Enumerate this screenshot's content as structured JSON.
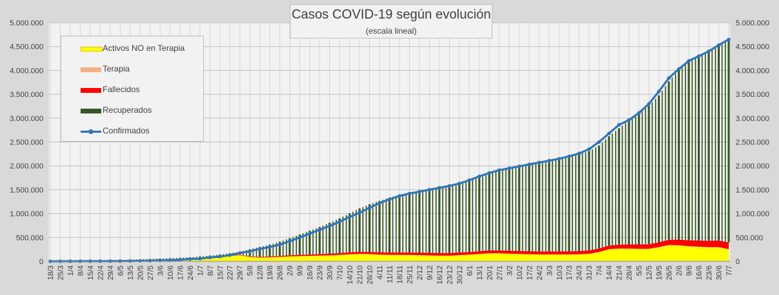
{
  "chart_data": {
    "type": "area",
    "title": "Casos COVID-19 según evolución",
    "subtitle": "(escala lineal)",
    "ylim": [
      0,
      5000000
    ],
    "ytick_labels": [
      "0",
      "500.000",
      "1.000.000",
      "1.500.000",
      "2.000.000",
      "2.500.000",
      "3.000.000",
      "3.500.000",
      "4.000.000",
      "4.500.000",
      "5.000.000"
    ],
    "y2tick_labels": [
      "0",
      "500.000",
      "1.000.000",
      "1.500.000",
      "2.000.000",
      "2.500.000",
      "3.000.000",
      "3.500.000",
      "4.000.000",
      "4.500.000",
      "5.000.000"
    ],
    "x_tick_labels": [
      "18/3",
      "25/3",
      "1/4",
      "8/4",
      "15/4",
      "22/4",
      "29/4",
      "6/5",
      "13/5",
      "20/5",
      "27/5",
      "3/6",
      "10/6",
      "17/6",
      "24/6",
      "1/7",
      "8/7",
      "15/7",
      "22/7",
      "29/7",
      "5/8",
      "12/8",
      "19/8",
      "26/8",
      "2/9",
      "9/9",
      "16/9",
      "23/9",
      "30/9",
      "7/10",
      "14/10",
      "21/10",
      "28/10",
      "4/11",
      "11/11",
      "18/11",
      "25/11",
      "2/12",
      "9/12",
      "16/12",
      "23/12",
      "30/12",
      "6/1",
      "13/1",
      "20/1",
      "27/1",
      "3/2",
      "10/2",
      "17/2",
      "24/2",
      "3/3",
      "10/3",
      "17/3",
      "24/3",
      "31/3",
      "7/4",
      "14/4",
      "21/4",
      "28/4",
      "5/5",
      "12/5",
      "19/5",
      "26/5",
      "2/6",
      "9/6",
      "16/6",
      "23/6",
      "30/6",
      "7/7"
    ],
    "legend_position": "top-left",
    "grid": true,
    "series": [
      {
        "name": "Activos NO en Terapia",
        "color": "#ffff00",
        "values": [
          50,
          4000,
          10000,
          15000,
          14000,
          13000,
          15000,
          17000,
          20000,
          25000,
          30000,
          35000,
          37000,
          40000,
          45000,
          55000,
          75000,
          90000,
          110000,
          125000,
          90000,
          75000,
          80000,
          90000,
          100000,
          105000,
          110000,
          115000,
          120000,
          130000,
          140000,
          150000,
          145000,
          135000,
          130000,
          130000,
          130000,
          125000,
          120000,
          115000,
          115000,
          125000,
          135000,
          150000,
          165000,
          165000,
          155000,
          150000,
          145000,
          140000,
          140000,
          140000,
          140000,
          145000,
          155000,
          190000,
          250000,
          260000,
          260000,
          255000,
          255000,
          290000,
          335000,
          330000,
          310000,
          300000,
          290000,
          290000,
          250000
        ]
      },
      {
        "name": "Terapia",
        "color": "#f4b183",
        "values": [
          10,
          100,
          200,
          300,
          350,
          350,
          400,
          400,
          450,
          500,
          550,
          600,
          700,
          900,
          1100,
          1400,
          1600,
          2000,
          2400,
          2800,
          3000,
          3300,
          3700,
          4200,
          4700,
          5000,
          5500,
          6000,
          6500,
          7000,
          7500,
          7500,
          7200,
          6800,
          6500,
          6000,
          5500,
          5000,
          4500,
          4200,
          4000,
          4000,
          4500,
          4800,
          5000,
          5000,
          4800,
          4500,
          4200,
          4000,
          3800,
          3600,
          3600,
          3800,
          4200,
          5000,
          6500,
          7500,
          8000,
          8000,
          8000,
          8000,
          8000,
          8000,
          7500,
          7000,
          6800,
          6500,
          6000
        ]
      },
      {
        "name": "Fallecidos",
        "color": "#ff0000",
        "values": [
          2,
          200,
          500,
          800,
          1000,
          1200,
          1400,
          1600,
          1800,
          2000,
          2300,
          2600,
          3000,
          3400,
          3800,
          4200,
          5000,
          6000,
          7500,
          9000,
          11000,
          13000,
          15500,
          18000,
          20500,
          23000,
          26000,
          29000,
          32000,
          35000,
          38000,
          41000,
          43000,
          45000,
          47000,
          48000,
          49000,
          50000,
          51000,
          52000,
          53000,
          54000,
          55000,
          56000,
          57000,
          58000,
          59000,
          60000,
          61000,
          62000,
          63000,
          64000,
          65000,
          66000,
          68000,
          71000,
          75000,
          80000,
          85000,
          90000,
          95000,
          100000,
          107000,
          115000,
          122000,
          128000,
          133000,
          137000,
          140000
        ]
      },
      {
        "name": "Recuperados",
        "color": "#375623",
        "values": [
          0,
          100,
          1000,
          2500,
          4000,
          5500,
          7000,
          9000,
          11000,
          14000,
          17000,
          21000,
          25000,
          30000,
          35000,
          42000,
          40000,
          45000,
          50000,
          60000,
          150000,
          210000,
          250000,
          300000,
          360000,
          430000,
          500000,
          570000,
          650000,
          730000,
          820000,
          910000,
          1000000,
          1080000,
          1150000,
          1210000,
          1260000,
          1300000,
          1340000,
          1380000,
          1420000,
          1450000,
          1490000,
          1540000,
          1600000,
          1670000,
          1740000,
          1790000,
          1840000,
          1880000,
          1920000,
          1960000,
          1990000,
          2030000,
          2080000,
          2160000,
          2290000,
          2440000,
          2600000,
          2750000,
          2900000,
          3080000,
          3320000,
          3560000,
          3750000,
          3880000,
          3980000,
          4100000,
          4260000
        ]
      },
      {
        "name": "Confirmados",
        "color": "#2e75b6",
        "values": [
          80,
          1000,
          2000,
          2800,
          3200,
          3600,
          4300,
          5200,
          7200,
          9900,
          12600,
          17900,
          23000,
          31000,
          49000,
          55000,
          80000,
          100000,
          130000,
          173000,
          210000,
          260000,
          300000,
          350000,
          420000,
          500000,
          580000,
          660000,
          740000,
          830000,
          930000,
          1020000,
          1120000,
          1220000,
          1300000,
          1370000,
          1420000,
          1460000,
          1500000,
          1540000,
          1580000,
          1630000,
          1700000,
          1780000,
          1850000,
          1910000,
          1950000,
          1990000,
          2030000,
          2070000,
          2110000,
          2150000,
          2200000,
          2260000,
          2350000,
          2500000,
          2680000,
          2860000,
          2960000,
          3110000,
          3300000,
          3560000,
          3840000,
          4030000,
          4200000,
          4300000,
          4400000,
          4530000,
          4650000
        ]
      }
    ]
  },
  "colors": {
    "background": "#d9d9d9",
    "plot_background": "#f2f2f2",
    "gridline": "#bfbfbf",
    "text": "#404040"
  }
}
